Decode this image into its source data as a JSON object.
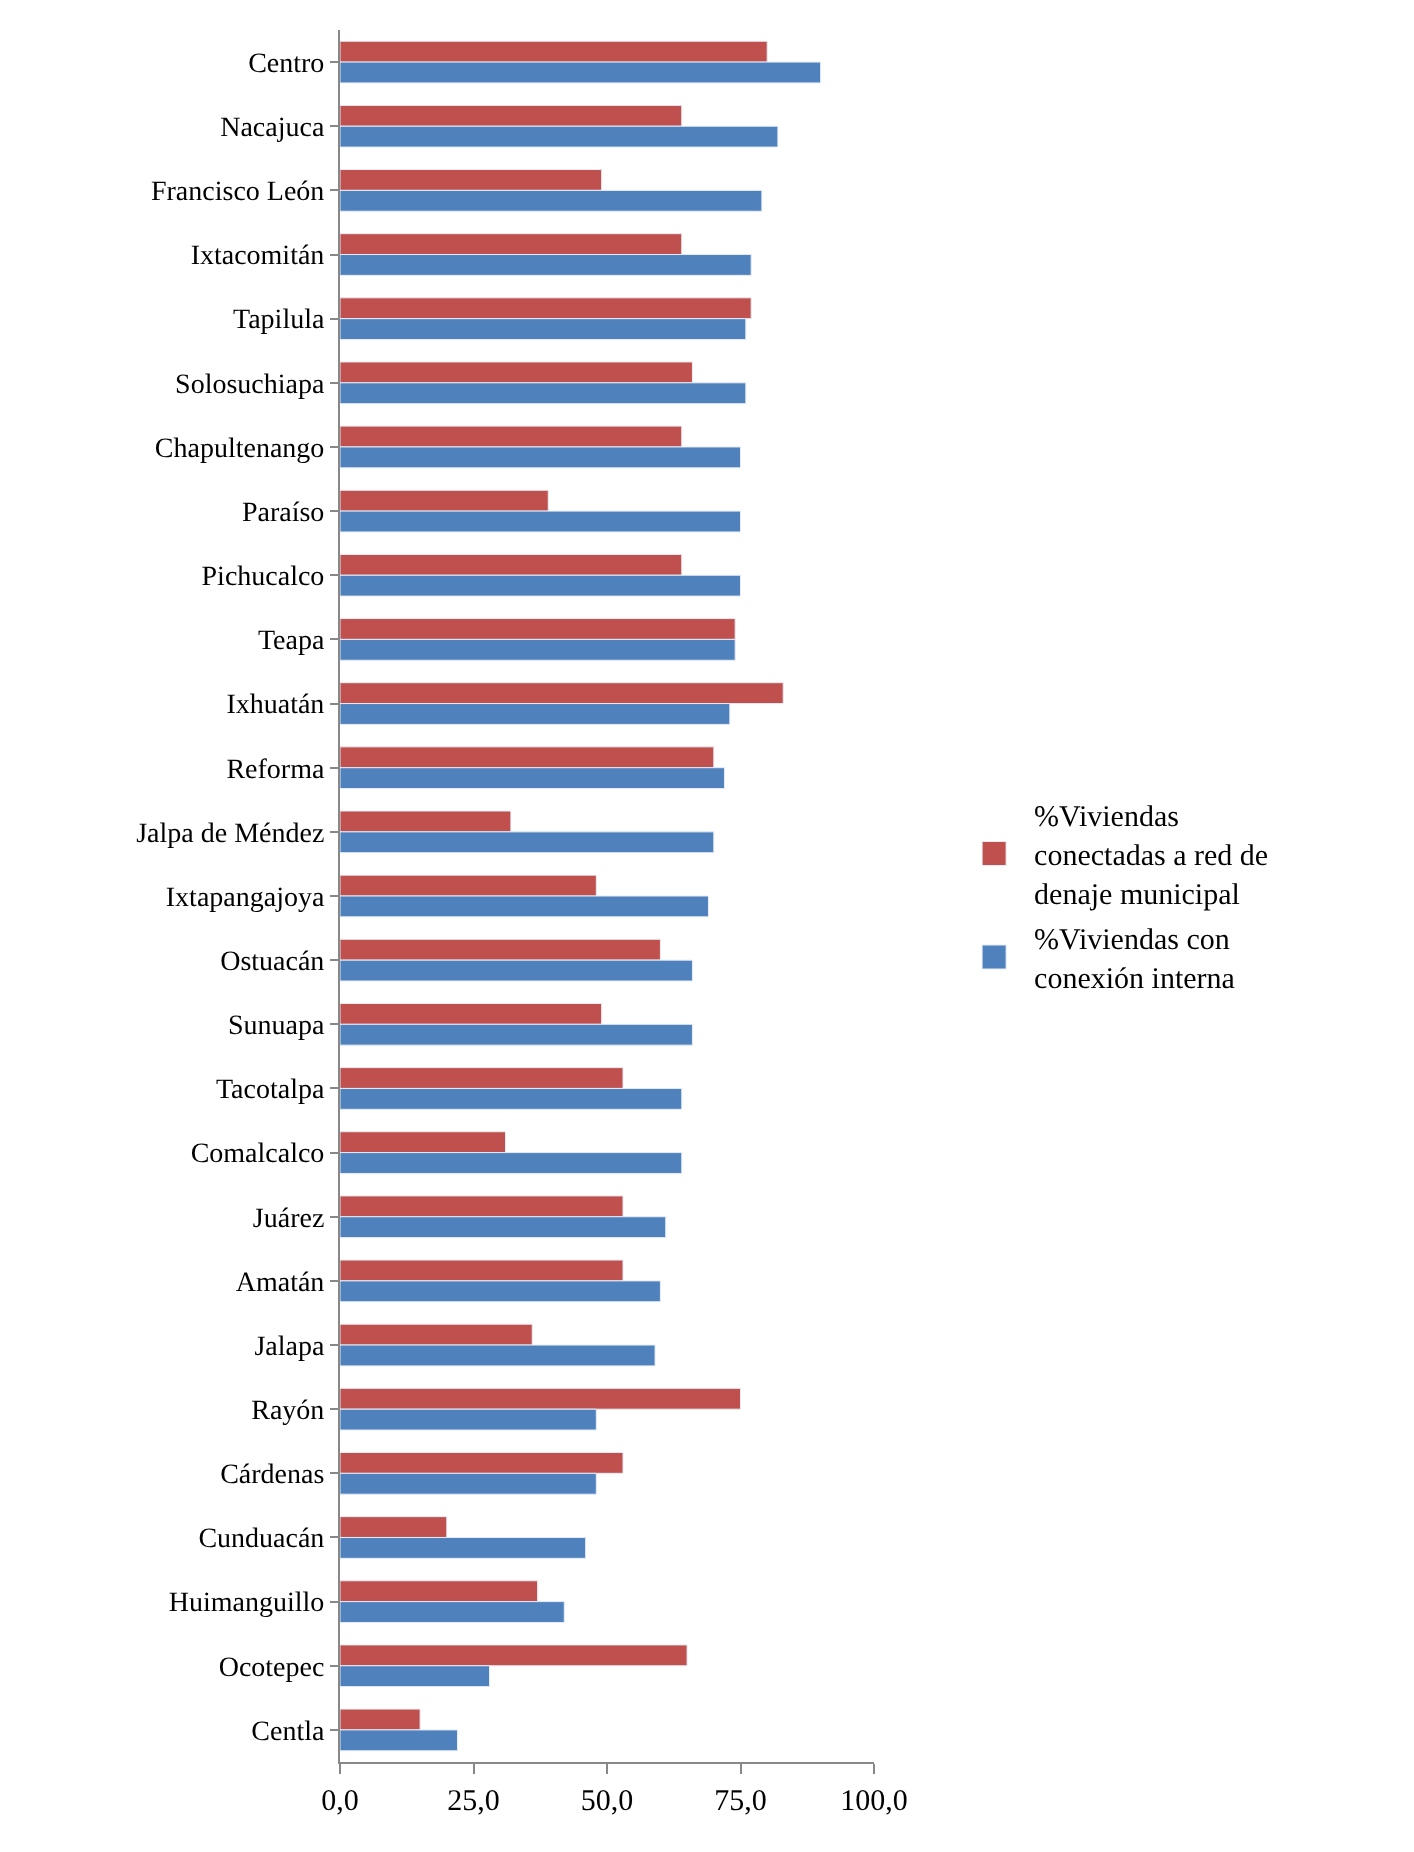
{
  "chart_data": {
    "type": "bar",
    "orientation": "horizontal",
    "categories": [
      "Centro",
      "Nacajuca",
      "Francisco León",
      "Ixtacomitán",
      "Tapilula",
      "Solosuchiapa",
      "Chapultenango",
      "Paraíso",
      "Pichucalco",
      "Teapa",
      "Ixhuatán",
      "Reforma",
      "Jalpa de Méndez",
      "Ixtapangajoya",
      "Ostuacán",
      "Sunuapa",
      "Tacotalpa",
      "Comalcalco",
      "Juárez",
      "Amatán",
      "Jalapa",
      "Rayón",
      "Cárdenas",
      "Cunduacán",
      "Huimanguillo",
      "Ocotepec",
      "Centla"
    ],
    "series": [
      {
        "name": "%Viviendas conectadas a red de denaje municipal",
        "color": "#c0504d",
        "values": [
          80,
          64,
          49,
          64,
          77,
          66,
          64,
          39,
          64,
          74,
          83,
          70,
          32,
          48,
          60,
          49,
          53,
          31,
          53,
          53,
          36,
          75,
          53,
          20,
          37,
          65,
          15
        ]
      },
      {
        "name": "%Viviendas con conexión interna",
        "color": "#4f81bd",
        "values": [
          90,
          82,
          79,
          77,
          76,
          76,
          75,
          75,
          75,
          74,
          73,
          72,
          70,
          69,
          66,
          66,
          64,
          64,
          61,
          60,
          59,
          48,
          48,
          46,
          42,
          28,
          22
        ]
      }
    ],
    "xlim": [
      0,
      100
    ],
    "xticks": [
      {
        "value": 0,
        "label": "0,0"
      },
      {
        "value": 25,
        "label": "25,0"
      },
      {
        "value": 50,
        "label": "50,0"
      },
      {
        "value": 75,
        "label": "75,0"
      },
      {
        "value": 100,
        "label": "100,0"
      }
    ],
    "legend": "right"
  }
}
